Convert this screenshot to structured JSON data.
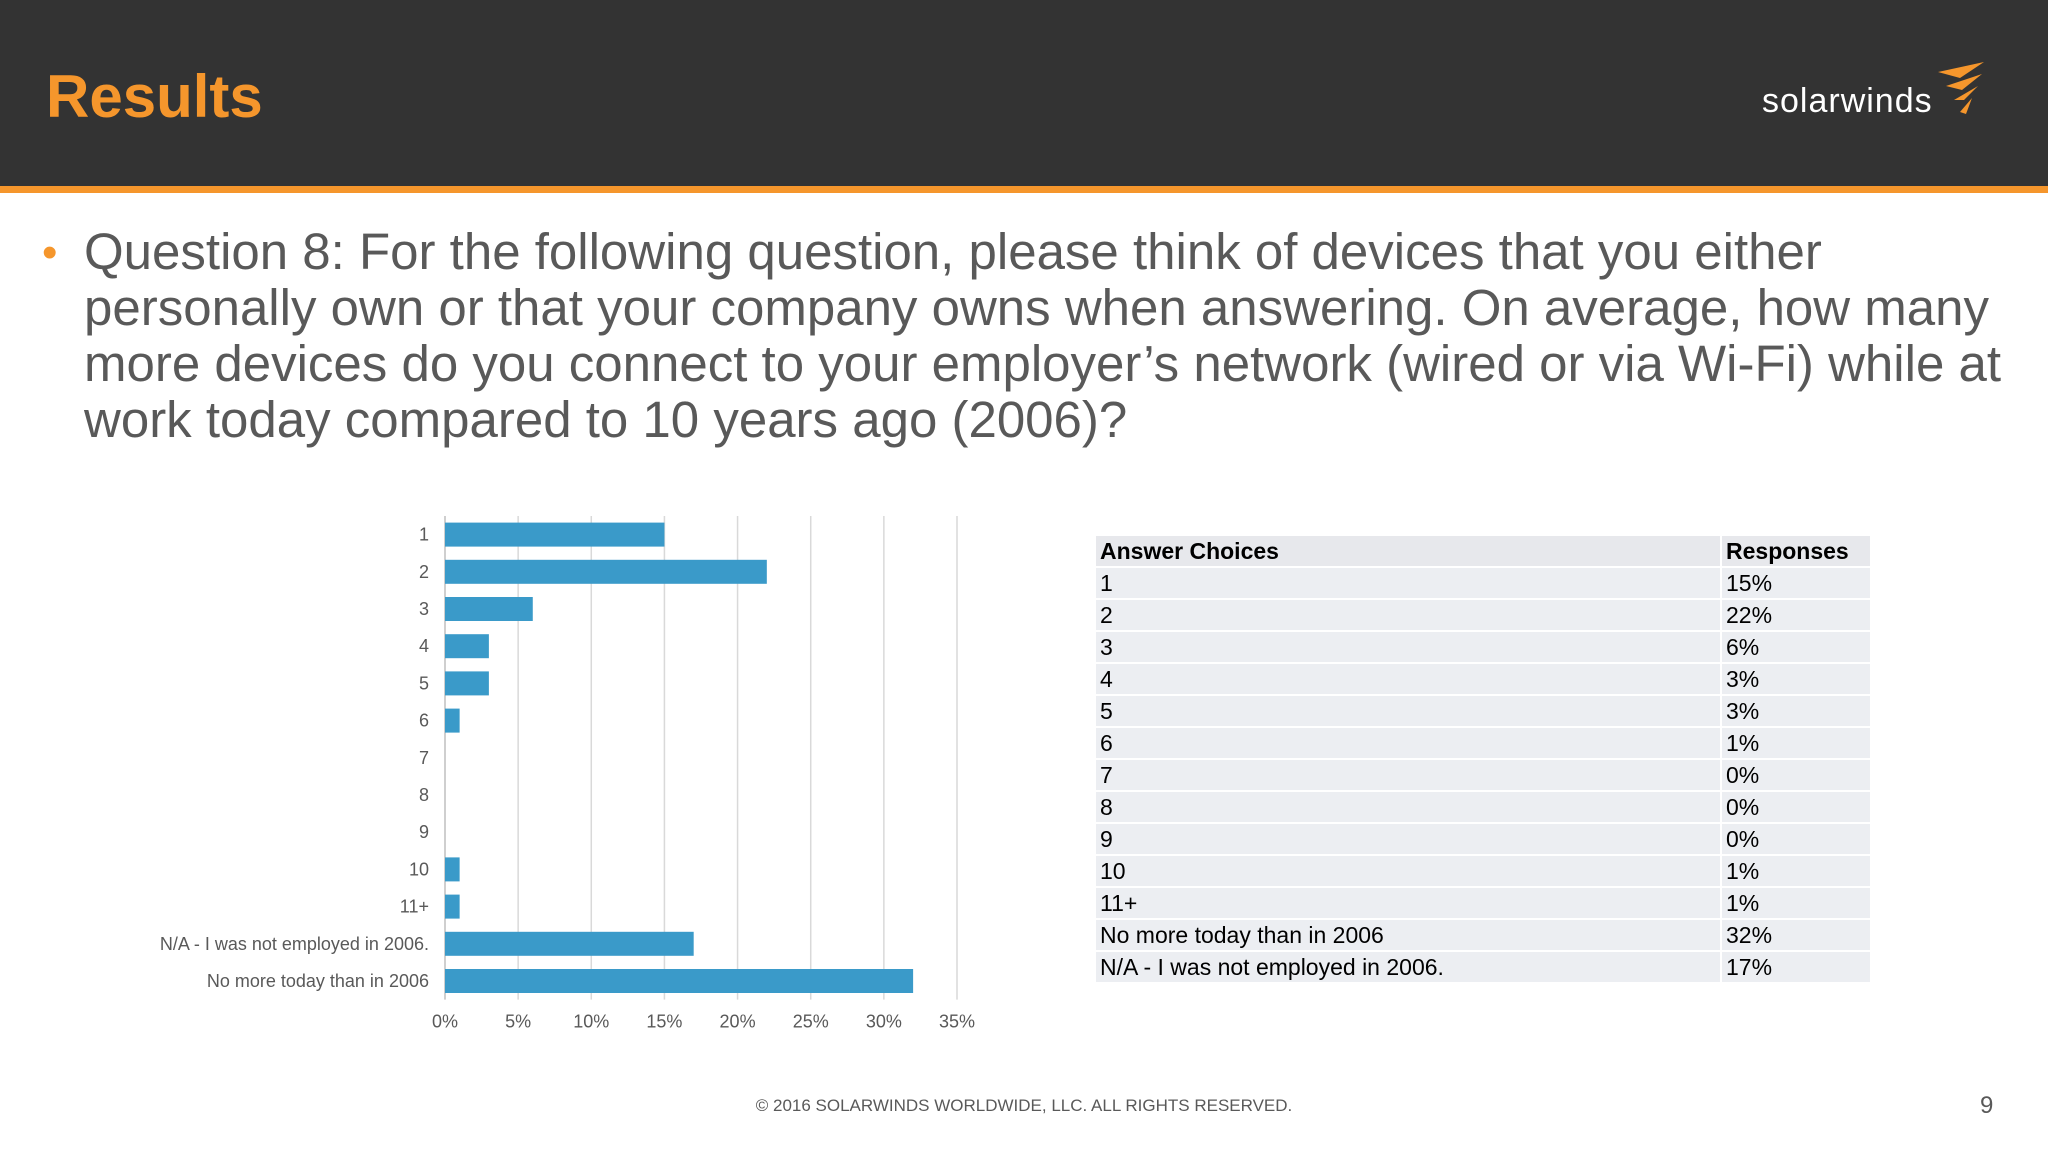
{
  "header": {
    "title": "Results",
    "logo_text": "solarwinds"
  },
  "question": "Question 8: For the following question, please think of devices that you either personally own or that your company owns when answering. On average, how many more devices do you connect to your employer’s network (wired or via Wi-Fi) while at work today compared to 10 years ago (2006)?",
  "chart_data": {
    "type": "bar",
    "orientation": "horizontal",
    "categories": [
      "1",
      "2",
      "3",
      "4",
      "5",
      "6",
      "7",
      "8",
      "9",
      "10",
      "11+",
      "N/A - I was not employed in 2006.",
      "No more today than in 2006"
    ],
    "values": [
      15,
      22,
      6,
      3,
      3,
      1,
      0,
      0,
      0,
      1,
      1,
      17,
      32
    ],
    "xticks": [
      "0%",
      "5%",
      "10%",
      "15%",
      "20%",
      "25%",
      "30%",
      "35%"
    ],
    "xlim": [
      0,
      35
    ],
    "grid": true,
    "color": "#3a9ac9"
  },
  "table": {
    "headers": [
      "Answer Choices",
      "Responses"
    ],
    "rows": [
      [
        "1",
        "15%"
      ],
      [
        "2",
        "22%"
      ],
      [
        "3",
        "6%"
      ],
      [
        "4",
        "3%"
      ],
      [
        "5",
        "3%"
      ],
      [
        "6",
        "1%"
      ],
      [
        "7",
        "0%"
      ],
      [
        "8",
        "0%"
      ],
      [
        "9",
        "0%"
      ],
      [
        "10",
        "1%"
      ],
      [
        "11+",
        "1%"
      ],
      [
        "No more today than in 2006",
        "32%"
      ],
      [
        "N/A - I was not employed in 2006.",
        "17%"
      ]
    ]
  },
  "footer": "© 2016 SOLARWINDS WORLDWIDE, LLC. ALL RIGHTS RESERVED.",
  "page_number": "9",
  "colors": {
    "accent": "#f5962c",
    "header_bg": "#333333",
    "bar": "#3a9ac9",
    "text": "#595959"
  }
}
